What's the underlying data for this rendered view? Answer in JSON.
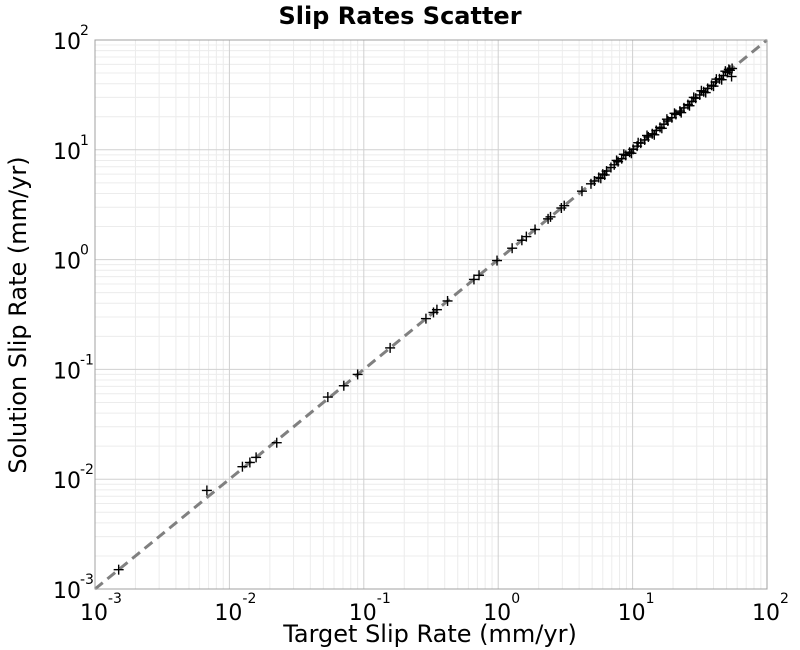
{
  "chart_data": {
    "type": "scatter",
    "title": "Slip Rates Scatter",
    "xlabel": "Target Slip Rate (mm/yr)",
    "ylabel": "Solution Slip Rate (mm/yr)",
    "xscale": "log",
    "yscale": "log",
    "xlim": [
      0.001,
      100
    ],
    "ylim": [
      0.001,
      100
    ],
    "grid": true,
    "marker": "plus",
    "marker_color": "#000000",
    "reference_line": {
      "style": "dashed",
      "color": "#808080",
      "from": [
        0.001,
        0.001
      ],
      "to": [
        100,
        100
      ]
    },
    "xticks": [
      {
        "base": "10",
        "exp": "-3",
        "value": 0.001
      },
      {
        "base": "10",
        "exp": "-2",
        "value": 0.01
      },
      {
        "base": "10",
        "exp": "-1",
        "value": 0.1
      },
      {
        "base": "10",
        "exp": "0",
        "value": 1
      },
      {
        "base": "10",
        "exp": "1",
        "value": 10
      },
      {
        "base": "10",
        "exp": "2",
        "value": 100
      }
    ],
    "yticks": [
      {
        "base": "10",
        "exp": "-3",
        "value": 0.001
      },
      {
        "base": "10",
        "exp": "-2",
        "value": 0.01
      },
      {
        "base": "10",
        "exp": "-1",
        "value": 0.1
      },
      {
        "base": "10",
        "exp": "0",
        "value": 1
      },
      {
        "base": "10",
        "exp": "1",
        "value": 10
      },
      {
        "base": "10",
        "exp": "2",
        "value": 100
      }
    ],
    "points": [
      [
        0.0015,
        0.0015
      ],
      [
        0.0068,
        0.0079
      ],
      [
        0.0125,
        0.013
      ],
      [
        0.0142,
        0.0142
      ],
      [
        0.0158,
        0.0158
      ],
      [
        0.0225,
        0.0215
      ],
      [
        0.054,
        0.056
      ],
      [
        0.071,
        0.071
      ],
      [
        0.09,
        0.09
      ],
      [
        0.157,
        0.157
      ],
      [
        0.29,
        0.29
      ],
      [
        0.33,
        0.33
      ],
      [
        0.35,
        0.35
      ],
      [
        0.42,
        0.42
      ],
      [
        0.66,
        0.66
      ],
      [
        0.72,
        0.72
      ],
      [
        0.98,
        0.98
      ],
      [
        1.27,
        1.27
      ],
      [
        1.5,
        1.5
      ],
      [
        1.62,
        1.62
      ],
      [
        1.88,
        1.88
      ],
      [
        2.35,
        2.35
      ],
      [
        2.45,
        2.45
      ],
      [
        2.95,
        2.95
      ],
      [
        3.1,
        3.1
      ],
      [
        4.2,
        4.2
      ],
      [
        4.9,
        4.9
      ],
      [
        5.2,
        5.2
      ],
      [
        5.6,
        5.6
      ],
      [
        6.0,
        6.0
      ],
      [
        6.4,
        6.4
      ],
      [
        6.9,
        6.9
      ],
      [
        7.3,
        7.3
      ],
      [
        7.8,
        7.8
      ],
      [
        8.3,
        8.3
      ],
      [
        8.9,
        8.9
      ],
      [
        9.5,
        9.5
      ],
      [
        10.1,
        10.1
      ],
      [
        10.8,
        10.8
      ],
      [
        11.5,
        11.5
      ],
      [
        12.3,
        12.3
      ],
      [
        13.1,
        13.1
      ],
      [
        14.0,
        14.0
      ],
      [
        15.0,
        15.0
      ],
      [
        16.0,
        16.0
      ],
      [
        17.1,
        17.1
      ],
      [
        18.3,
        18.3
      ],
      [
        19.6,
        19.6
      ],
      [
        21.0,
        21.0
      ],
      [
        22.5,
        22.5
      ],
      [
        24.1,
        24.1
      ],
      [
        25.8,
        25.8
      ],
      [
        27.6,
        27.6
      ],
      [
        29.5,
        29.5
      ],
      [
        31.6,
        31.6
      ],
      [
        33.8,
        33.8
      ],
      [
        36.2,
        36.2
      ],
      [
        38.7,
        38.7
      ],
      [
        41.4,
        41.4
      ],
      [
        44.3,
        44.3
      ],
      [
        47.4,
        47.4
      ],
      [
        50.7,
        50.7
      ],
      [
        53.0,
        53.0
      ],
      [
        55.0,
        55.0
      ],
      [
        6.2,
        5.9
      ],
      [
        8.6,
        9.1
      ],
      [
        11.0,
        11.6
      ],
      [
        14.5,
        13.7
      ],
      [
        18.0,
        19.0
      ],
      [
        23.0,
        21.8
      ],
      [
        28.5,
        30.0
      ],
      [
        35.0,
        33.2
      ],
      [
        42.0,
        44.0
      ],
      [
        46.0,
        43.5
      ],
      [
        52.0,
        54.0
      ],
      [
        54.5,
        46.5
      ],
      [
        49.0,
        52.0
      ],
      [
        40.0,
        38.0
      ],
      [
        32.5,
        34.5
      ],
      [
        26.5,
        25.2
      ],
      [
        20.5,
        21.5
      ],
      [
        16.5,
        15.7
      ],
      [
        12.8,
        13.5
      ],
      [
        9.8,
        9.3
      ],
      [
        7.6,
        8.0
      ],
      [
        5.8,
        5.5
      ]
    ]
  }
}
